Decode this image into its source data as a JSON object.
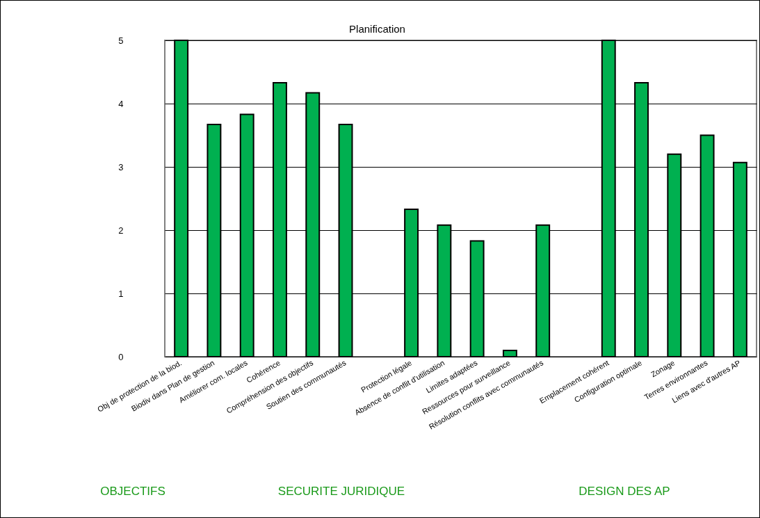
{
  "chart_data": {
    "type": "bar",
    "title": "Planification",
    "categories": [
      "Obj de protection de la biod.",
      "Biodiv dans Plan de gestion",
      "Améliorer com. locales",
      "Cohérence",
      "Compréhension des objectifs",
      "Soutien des communautés",
      null,
      "Protection légale",
      "Absence de conflit d'utilisation",
      "Limites adaptées",
      "Ressources pour surveillance",
      "Résolution conflits avec communautés",
      null,
      "Emplacement cohérent",
      "Configuration optimale",
      "Zonage",
      "Terres environnantes",
      "Liens avec d'autres AP"
    ],
    "values": [
      5,
      3.67,
      3.83,
      4.33,
      4.17,
      3.67,
      null,
      2.33,
      2.08,
      1.83,
      0.1,
      2.08,
      null,
      5,
      4.33,
      3.2,
      3.5,
      3.07
    ],
    "color": "#00b050",
    "ylim": [
      0,
      5
    ],
    "yticks": [
      0,
      1,
      2,
      3,
      4,
      5
    ],
    "grid": "y",
    "annotations": [
      "OBJECTIFS",
      "SECURITE JURIDIQUE",
      "DESIGN DES AP"
    ]
  }
}
